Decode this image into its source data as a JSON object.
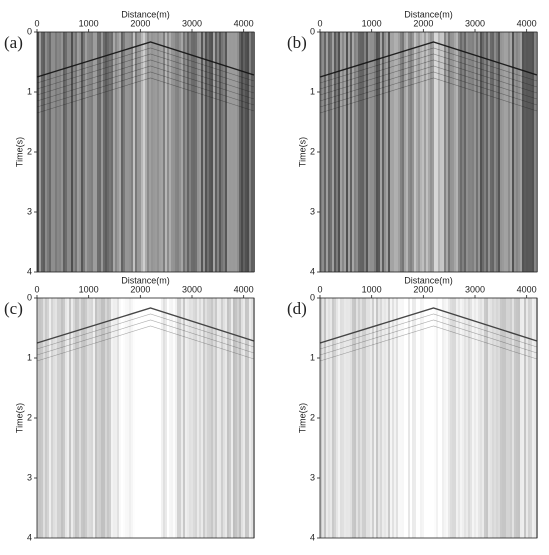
{
  "chart_data": [
    {
      "type": "seismic",
      "panel_label": "(a)",
      "xlabel": "Distance(m)",
      "ylabel": "Time(s)",
      "xlim": [
        0,
        4200
      ],
      "ylim": [
        0,
        4
      ],
      "xticks": [
        0,
        1000,
        2000,
        3000,
        4000
      ],
      "yticks": [
        0,
        1,
        2,
        3,
        4
      ],
      "yinvert": true
    },
    {
      "type": "seismic",
      "panel_label": "(b)",
      "xlabel": "Distance(m)",
      "ylabel": "Time(s)",
      "xlim": [
        0,
        4200
      ],
      "ylim": [
        0,
        4
      ],
      "xticks": [
        0,
        1000,
        2000,
        3000,
        4000
      ],
      "yticks": [
        0,
        1,
        2,
        3,
        4
      ],
      "yinvert": true
    },
    {
      "type": "seismic",
      "panel_label": "(c)",
      "xlabel": "Distance(m)",
      "ylabel": "Time(s)",
      "xlim": [
        0,
        4200
      ],
      "ylim": [
        0,
        4
      ],
      "xticks": [
        0,
        1000,
        2000,
        3000,
        4000
      ],
      "yticks": [
        0,
        1,
        2,
        3,
        4
      ],
      "yinvert": true
    },
    {
      "type": "seismic",
      "panel_label": "(d)",
      "xlabel": "Distance(m)",
      "ylabel": "Time(s)",
      "xlim": [
        0,
        4200
      ],
      "ylim": [
        0,
        4
      ],
      "xticks": [
        0,
        1000,
        2000,
        3000,
        4000
      ],
      "yticks": [
        0,
        1,
        2,
        3,
        4
      ],
      "yinvert": true
    }
  ]
}
